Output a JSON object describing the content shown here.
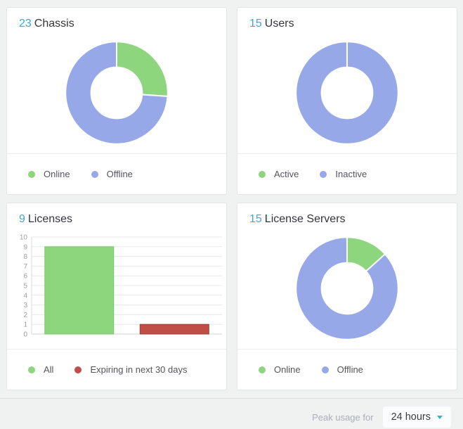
{
  "accent_color": "#3fa8cf",
  "chart_data": [
    {
      "type": "donut",
      "title": "Chassis",
      "count": 23,
      "series": [
        {
          "name": "Online",
          "value": 6,
          "color": "#8dd67d"
        },
        {
          "name": "Offline",
          "value": 17,
          "color": "#96a8e7"
        }
      ],
      "legend_position": "bottom"
    },
    {
      "type": "donut",
      "title": "Users",
      "count": 15,
      "series": [
        {
          "name": "Active",
          "value": 0,
          "color": "#8dd67d"
        },
        {
          "name": "Inactive",
          "value": 15,
          "color": "#96a8e7"
        }
      ],
      "legend_position": "bottom"
    },
    {
      "type": "bar",
      "title": "Licenses",
      "count": 9,
      "categories": [
        "All",
        "Expiring in next 30 days"
      ],
      "series": [
        {
          "name": "All",
          "value": 9,
          "color": "#8dd67d",
          "border_color": "#7cc76e"
        },
        {
          "name": "Expiring in next 30 days",
          "value": 1,
          "color": "#bf4e46",
          "border_color": "#a43e38"
        }
      ],
      "ylim": [
        0,
        10
      ],
      "yticks": [
        0,
        1,
        2,
        3,
        4,
        5,
        6,
        7,
        8,
        9,
        10
      ],
      "grid": true,
      "legend_position": "bottom"
    },
    {
      "type": "donut",
      "title": "License Servers",
      "count": 15,
      "series": [
        {
          "name": "Online",
          "value": 2,
          "color": "#8dd67d"
        },
        {
          "name": "Offline",
          "value": 13,
          "color": "#96a8e7"
        }
      ],
      "legend_position": "bottom"
    }
  ],
  "footer": {
    "label": "Peak usage for",
    "selected_range": "24 hours",
    "caret_color": "#2fb5c8"
  }
}
